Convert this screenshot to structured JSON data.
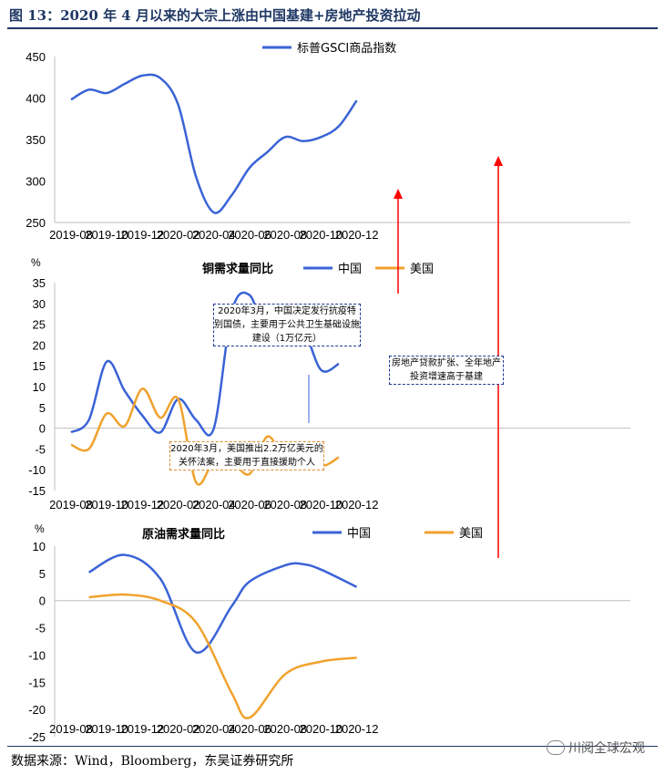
{
  "figure_title": "图 13：2020 年 4 月以来的大宗上涨由中国基建+房地产投资拉动",
  "source_text": "数据来源：Wind，Bloomberg，东吴证券研究所",
  "watermark_text": "川阅全球宏观",
  "colors": {
    "china": "#3a63d6",
    "us": "#f0a22e",
    "arrow": "#ff0000",
    "title": "#1f3864"
  },
  "annotations": {
    "china_bonds": "2020年3月，中国决定发行抗疫特别国债，主要用于公共卫生基础设施建设（1万亿元）",
    "us_relief": "2020年3月，美国推出2.2万亿美元的关怀法案，主要用于直接援助个人",
    "property": "房地产贷款扩张、全年地产投资增速高于基建"
  },
  "chart_data": [
    {
      "type": "line",
      "legend": [
        "标普GSCI商品指数"
      ],
      "x_ticks": [
        "2019-08",
        "2019-10",
        "2019-12",
        "2020-02",
        "2020-04",
        "2020-06",
        "2020-08",
        "2020-10",
        "2020-12"
      ],
      "ylim": [
        250,
        450
      ],
      "y_ticks": [
        250,
        300,
        350,
        400,
        450
      ],
      "series": [
        {
          "name": "标普GSCI商品指数",
          "color_key": "china",
          "points": [
            [
              "2019-08",
              398
            ],
            [
              "2019-09",
              410
            ],
            [
              "2019-10",
              406
            ],
            [
              "2019-11",
              417
            ],
            [
              "2019-12",
              427
            ],
            [
              "2020-01",
              424
            ],
            [
              "2020-02",
              392
            ],
            [
              "2020-03",
              305
            ],
            [
              "2020-04",
              262
            ],
            [
              "2020-05",
              283
            ],
            [
              "2020-06",
              316
            ],
            [
              "2020-07",
              335
            ],
            [
              "2020-08",
              353
            ],
            [
              "2020-09",
              348
            ],
            [
              "2020-10",
              353
            ],
            [
              "2020-11",
              366
            ],
            [
              "2020-12",
              397
            ]
          ]
        }
      ]
    },
    {
      "type": "line",
      "title": "铜需求量同比",
      "unit": "%",
      "legend": [
        "中国",
        "美国"
      ],
      "x_ticks": [
        "2019-08",
        "2019-10",
        "2019-12",
        "2020-02",
        "2020-04",
        "2020-06",
        "2020-08",
        "2020-10",
        "2020-12"
      ],
      "ylim": [
        -15,
        35
      ],
      "y_ticks": [
        -15,
        -10,
        -5,
        0,
        5,
        10,
        15,
        20,
        25,
        30,
        35
      ],
      "series": [
        {
          "name": "中国",
          "color_key": "china",
          "points": [
            [
              "2019-08",
              -1
            ],
            [
              "2019-09",
              2
            ],
            [
              "2019-10",
              16
            ],
            [
              "2019-11",
              9
            ],
            [
              "2019-12",
              3
            ],
            [
              "2020-01",
              -1
            ],
            [
              "2020-02",
              7
            ],
            [
              "2020-03",
              2
            ],
            [
              "2020-04",
              0
            ],
            [
              "2020-05",
              28
            ],
            [
              "2020-06",
              32
            ],
            [
              "2020-07",
              22
            ],
            [
              "2020-08",
              26
            ],
            [
              "2020-09",
              24
            ],
            [
              "2020-10",
              14
            ],
            [
              "2020-11",
              15.5
            ]
          ]
        },
        {
          "name": "美国",
          "color_key": "us",
          "points": [
            [
              "2019-08",
              -4
            ],
            [
              "2019-09",
              -5
            ],
            [
              "2019-10",
              3.5
            ],
            [
              "2019-11",
              0.5
            ],
            [
              "2019-12",
              9.5
            ],
            [
              "2020-01",
              2.5
            ],
            [
              "2020-02",
              7
            ],
            [
              "2020-03",
              -13
            ],
            [
              "2020-04",
              -8
            ],
            [
              "2020-05",
              -8
            ],
            [
              "2020-06",
              -11
            ],
            [
              "2020-07",
              -2
            ],
            [
              "2020-08",
              -7.5
            ],
            [
              "2020-09",
              -4.5
            ],
            [
              "2020-10",
              -9
            ],
            [
              "2020-11",
              -7
            ]
          ]
        }
      ]
    },
    {
      "type": "line",
      "title": "原油需求量同比",
      "unit": "%",
      "legend": [
        "中国",
        "美国"
      ],
      "x_ticks": [
        "2019-08",
        "2019-10",
        "2019-12",
        "2020-02",
        "2020-04",
        "2020-06",
        "2020-08",
        "2020-10",
        "2020-12"
      ],
      "ylim": [
        -25,
        10
      ],
      "y_ticks": [
        -25,
        -20,
        -15,
        -10,
        -5,
        0,
        5,
        10
      ],
      "series": [
        {
          "name": "中国",
          "color_key": "china",
          "points": [
            [
              "2019-09",
              5.2
            ],
            [
              "2019-11",
              8.4
            ],
            [
              "2020-01",
              4
            ],
            [
              "2020-03",
              -9.5
            ],
            [
              "2020-05",
              -1
            ],
            [
              "2020-06",
              3.5
            ],
            [
              "2020-08",
              6.5
            ],
            [
              "2020-09",
              6.7
            ],
            [
              "2020-10",
              5.7
            ],
            [
              "2020-12",
              2.5
            ]
          ]
        },
        {
          "name": "美国",
          "color_key": "us",
          "points": [
            [
              "2019-09",
              0.6
            ],
            [
              "2019-11",
              1.1
            ],
            [
              "2020-01",
              0
            ],
            [
              "2020-03",
              -4
            ],
            [
              "2020-05",
              -17
            ],
            [
              "2020-06",
              -21.5
            ],
            [
              "2020-08",
              -13.5
            ],
            [
              "2020-10",
              -11.2
            ],
            [
              "2020-12",
              -10.5
            ]
          ]
        }
      ]
    }
  ]
}
